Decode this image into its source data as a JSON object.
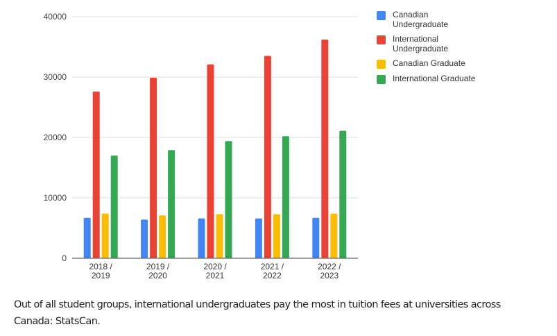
{
  "chart_data": {
    "type": "bar",
    "title": "",
    "xlabel": "",
    "ylabel": "",
    "ylim": [
      0,
      40000
    ],
    "yticks": [
      0,
      10000,
      20000,
      30000,
      40000
    ],
    "grid": true,
    "legend_position": "right",
    "categories": [
      "2018 / 2019",
      "2019 / 2020",
      "2020 / 2021",
      "2021 / 2022",
      "2022 / 2023"
    ],
    "category_lines": [
      [
        "2018 /",
        "2019"
      ],
      [
        "2019 /",
        "2020"
      ],
      [
        "2020 /",
        "2021"
      ],
      [
        "2021 /",
        "2022"
      ],
      [
        "2022 /",
        "2023"
      ]
    ],
    "series": [
      {
        "name": "Canadian Undergraduate",
        "name_lines": [
          "Canadian",
          "Undergraduate"
        ],
        "color": "#4285F4",
        "values": [
          6700,
          6400,
          6600,
          6600,
          6700
        ]
      },
      {
        "name": "International Undergraduate",
        "name_lines": [
          "International",
          "Undergraduate"
        ],
        "color": "#EA4335",
        "values": [
          27600,
          29900,
          32100,
          33500,
          36200
        ]
      },
      {
        "name": "Canadian Graduate",
        "name_lines": [
          "Canadian Graduate"
        ],
        "color": "#FBBC04",
        "values": [
          7400,
          7100,
          7300,
          7300,
          7400
        ]
      },
      {
        "name": "International Graduate",
        "name_lines": [
          "International Graduate"
        ],
        "color": "#34A853",
        "values": [
          17000,
          17900,
          19400,
          20200,
          21100
        ]
      }
    ]
  },
  "caption": {
    "text": "Out of all student groups, international undergraduates pay the most in tuition fees at universities across Canada: StatsCan."
  }
}
